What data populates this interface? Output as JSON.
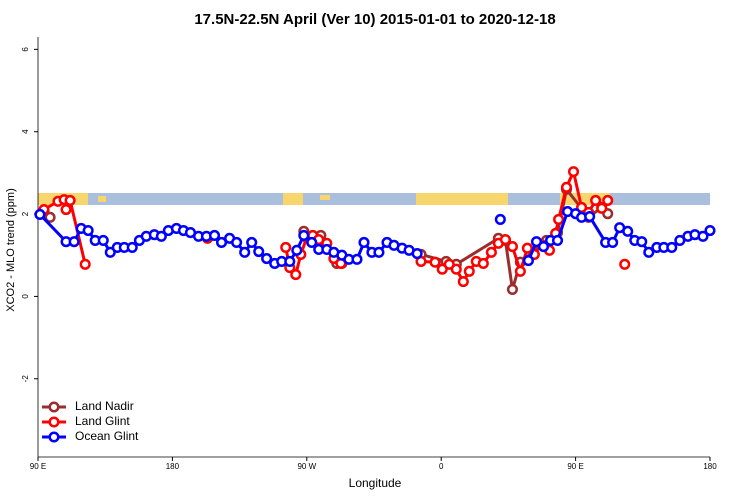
{
  "chart_data": {
    "type": "line",
    "title": "17.5N-22.5N April (Ver 10)   2015-01-01 to 2020-12-18",
    "x_label": "Longitude",
    "y_label": "XCO2 - MLO trend (ppm)",
    "xlim": [
      90,
      540
    ],
    "xticks": [
      {
        "value": 90,
        "label": "90 E"
      },
      180,
      {
        "value": 270,
        "label": "90 W"
      },
      {
        "value": 360,
        "label": "0"
      },
      {
        "value": 450,
        "label": "90 E"
      },
      {
        "value": 540,
        "label": "180"
      }
    ],
    "ylim": [
      -3.9,
      6.3
    ],
    "yticks": [
      -2,
      0,
      2,
      4,
      6
    ],
    "legend": "bottom-left",
    "series": [
      {
        "name": "Land Nadir",
        "color": "#9b2d2d",
        "x": [
          94.0,
          98.1,
          null,
          268.0,
          279.4,
          290.1,
          293.5,
          null,
          346.5,
          363.3,
          370.1,
          398.3,
          403.0,
          407.7,
          413.0,
          430.5,
          437.9,
          443.9,
          458.7,
          467.5,
          471.5
        ],
        "values": [
          2.06,
          1.92,
          null,
          1.58,
          1.48,
          0.8,
          0.8,
          null,
          1.02,
          0.85,
          0.78,
          1.41,
          1.36,
          0.17,
          0.83,
          1.36,
          1.55,
          2.6,
          1.92,
          2.16,
          2.01
        ]
      },
      {
        "name": "Land Glint",
        "color": "#ff0000",
        "x": [
          94.0,
          103.4,
          107.5,
          108.8,
          111.5,
          121.6,
          null,
          203.5,
          null,
          255.9,
          258.6,
          262.6,
          266.0,
          270.0,
          274.0,
          278.0,
          283.4,
          288.1,
          292.8,
          null,
          346.5,
          355.9,
          360.7,
          365.4,
          370.1,
          374.8,
          378.8,
          383.5,
          388.2,
          393.6,
          398.3,
          403.0,
          407.7,
          413.0,
          417.7,
          422.4,
          427.1,
          432.5,
          436.6,
          438.6,
          443.9,
          448.6,
          454.0,
          458.7,
          463.4,
          467.5,
          471.5,
          null,
          482.9
        ],
        "values": [
          2.11,
          2.31,
          2.35,
          2.11,
          2.33,
          0.78,
          null,
          1.41,
          null,
          1.19,
          0.7,
          0.53,
          1.02,
          1.43,
          1.48,
          1.38,
          1.29,
          0.92,
          0.8,
          null,
          0.85,
          0.83,
          0.66,
          0.78,
          0.66,
          0.36,
          0.61,
          0.85,
          0.8,
          1.07,
          1.29,
          1.38,
          1.21,
          0.61,
          1.17,
          1.02,
          1.26,
          1.12,
          1.53,
          1.87,
          2.65,
          3.03,
          2.16,
          2.04,
          2.33,
          2.14,
          2.33,
          null,
          0.78
        ]
      },
      {
        "name": "Ocean Glint",
        "color": "#0000ff",
        "x": [
          91.3,
          108.8,
          114.2,
          118.9,
          123.6,
          128.3,
          133.7,
          138.4,
          143.1,
          147.8,
          153.1,
          157.9,
          162.5,
          167.9,
          172.6,
          177.3,
          182.7,
          187.4,
          192.1,
          197.5,
          202.8,
          208.2,
          212.9,
          218.3,
          223.0,
          228.4,
          233.1,
          237.8,
          243.1,
          248.5,
          253.2,
          258.6,
          263.3,
          268.0,
          273.3,
          278.0,
          283.4,
          288.1,
          293.5,
          298.2,
          303.6,
          308.3,
          313.6,
          318.3,
          323.7,
          328.4,
          333.8,
          338.5,
          343.9,
          null,
          399.6,
          null,
          418.4,
          423.8,
          428.5,
          433.2,
          437.9,
          444.6,
          450.0,
          454.0,
          459.4,
          470.1,
          474.8,
          479.5,
          484.9,
          489.6,
          494.3,
          499.0,
          504.4,
          509.1,
          514.4,
          519.8,
          525.2,
          529.9,
          535.3,
          540.0
        ],
        "values": [
          1.99,
          1.33,
          1.33,
          1.65,
          1.6,
          1.36,
          1.36,
          1.07,
          1.19,
          1.19,
          1.19,
          1.36,
          1.46,
          1.5,
          1.46,
          1.6,
          1.65,
          1.6,
          1.55,
          1.46,
          1.46,
          1.48,
          1.31,
          1.41,
          1.31,
          1.07,
          1.31,
          1.09,
          0.92,
          0.8,
          0.85,
          0.85,
          1.12,
          1.48,
          1.31,
          1.14,
          1.14,
          1.07,
          1.0,
          0.9,
          0.9,
          1.31,
          1.07,
          1.07,
          1.31,
          1.24,
          1.17,
          1.12,
          1.04,
          null,
          1.87,
          null,
          0.87,
          1.33,
          1.21,
          1.36,
          1.36,
          2.06,
          2.01,
          1.92,
          1.94,
          1.31,
          1.31,
          1.67,
          1.58,
          1.36,
          1.33,
          1.07,
          1.19,
          1.19,
          1.19,
          1.36,
          1.46,
          1.5,
          1.46,
          1.6
        ]
      }
    ]
  }
}
